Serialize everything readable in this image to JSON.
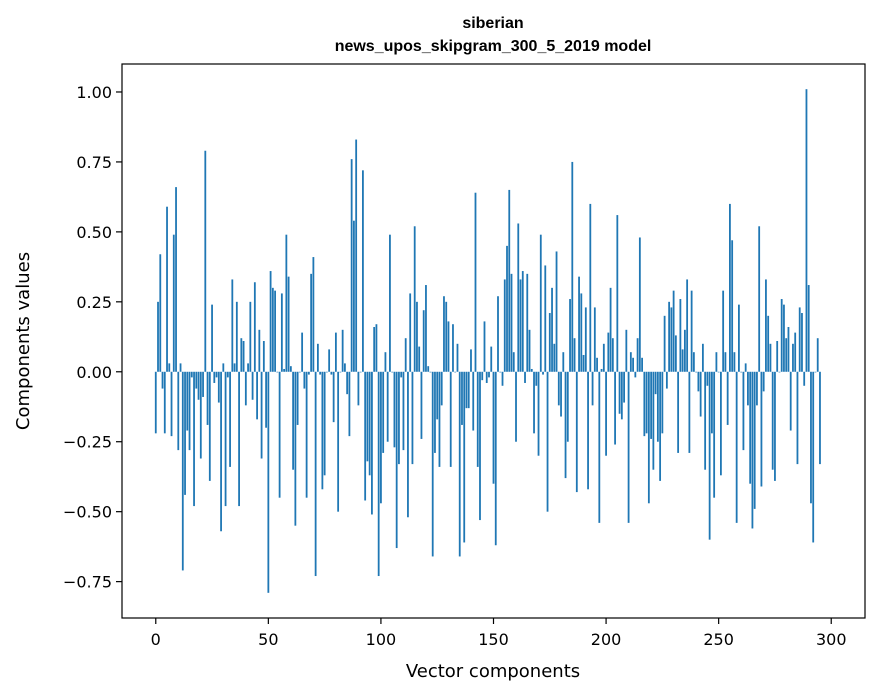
{
  "chart_data": {
    "type": "bar",
    "title_line1": "siberian",
    "title_line2": "news_upos_skipgram_300_5_2019 model",
    "xlabel": "Vector components",
    "ylabel": "Components values",
    "xlim": [
      -15,
      315
    ],
    "ylim": [
      -0.88,
      1.1
    ],
    "xticks": [
      0,
      50,
      100,
      150,
      200,
      250,
      300
    ],
    "yticks": [
      -0.75,
      -0.5,
      -0.25,
      0.0,
      0.25,
      0.5,
      0.75,
      1.0
    ],
    "ytick_labels": [
      "−0.75",
      "−0.50",
      "−0.25",
      "0.00",
      "0.25",
      "0.50",
      "0.75",
      "1.00"
    ],
    "bar_color": "#1f77b4",
    "values": [
      -0.22,
      0.25,
      0.42,
      -0.06,
      -0.22,
      0.59,
      0.03,
      -0.23,
      0.49,
      0.66,
      -0.28,
      0.03,
      -0.71,
      -0.44,
      -0.21,
      -0.28,
      -0.02,
      -0.48,
      -0.06,
      -0.1,
      -0.31,
      -0.09,
      0.79,
      -0.19,
      -0.39,
      0.24,
      -0.04,
      -0.02,
      -0.11,
      -0.57,
      0.03,
      -0.48,
      -0.02,
      -0.34,
      0.33,
      0.03,
      0.25,
      -0.48,
      0.12,
      0.11,
      -0.12,
      0.03,
      0.25,
      -0.1,
      0.32,
      -0.17,
      0.15,
      -0.31,
      0.11,
      -0.2,
      -0.79,
      0.36,
      0.3,
      0.29,
      0.0,
      -0.45,
      0.28,
      0.01,
      0.49,
      0.34,
      0.02,
      -0.35,
      -0.55,
      -0.19,
      0.0,
      0.14,
      -0.06,
      -0.45,
      -0.01,
      0.35,
      0.41,
      -0.73,
      0.1,
      -0.01,
      -0.42,
      -0.37,
      0.0,
      0.08,
      -0.01,
      -0.18,
      0.14,
      -0.5,
      0.0,
      0.15,
      0.03,
      -0.08,
      -0.23,
      0.76,
      0.54,
      0.83,
      -0.12,
      0.0,
      0.72,
      -0.46,
      -0.32,
      -0.37,
      -0.51,
      0.16,
      0.17,
      -0.73,
      -0.47,
      -0.29,
      0.07,
      -0.25,
      0.49,
      0.0,
      -0.27,
      -0.63,
      -0.33,
      -0.02,
      -0.28,
      0.12,
      -0.52,
      0.28,
      -0.33,
      0.52,
      0.25,
      0.09,
      -0.24,
      0.22,
      0.31,
      0.02,
      0.0,
      -0.66,
      -0.29,
      -0.17,
      -0.34,
      -0.12,
      0.27,
      0.25,
      0.18,
      -0.34,
      0.17,
      0.0,
      0.1,
      -0.66,
      -0.19,
      -0.61,
      -0.13,
      -0.13,
      0.08,
      -0.21,
      0.64,
      -0.34,
      -0.53,
      -0.03,
      0.18,
      -0.04,
      -0.02,
      0.09,
      -0.4,
      -0.62,
      0.27,
      0.0,
      -0.05,
      0.33,
      0.45,
      0.65,
      0.35,
      0.07,
      -0.25,
      0.53,
      0.33,
      0.36,
      -0.04,
      0.35,
      0.15,
      0.01,
      -0.22,
      -0.05,
      -0.3,
      0.49,
      -0.01,
      0.38,
      -0.5,
      0.21,
      0.3,
      0.1,
      0.43,
      -0.12,
      -0.16,
      0.07,
      -0.38,
      -0.25,
      0.26,
      0.75,
      0.12,
      -0.43,
      0.34,
      0.28,
      0.06,
      0.23,
      -0.42,
      0.6,
      -0.12,
      0.23,
      0.05,
      -0.54,
      0.01,
      0.1,
      -0.3,
      0.14,
      0.3,
      0.12,
      -0.26,
      0.56,
      -0.15,
      -0.17,
      -0.11,
      0.15,
      -0.54,
      0.07,
      0.05,
      -0.02,
      0.12,
      0.48,
      0.05,
      -0.23,
      -0.22,
      -0.47,
      -0.24,
      -0.35,
      -0.08,
      -0.25,
      -0.39,
      -0.22,
      0.2,
      -0.06,
      0.25,
      0.23,
      0.29,
      0.13,
      -0.29,
      0.26,
      0.08,
      0.15,
      0.33,
      -0.29,
      0.29,
      0.07,
      0.0,
      -0.07,
      -0.16,
      0.1,
      -0.35,
      -0.05,
      -0.6,
      -0.22,
      -0.45,
      0.07,
      0.0,
      -0.37,
      0.29,
      0.07,
      -0.19,
      0.6,
      0.47,
      0.07,
      -0.54,
      0.24,
      0.0,
      -0.28,
      0.03,
      -0.12,
      -0.4,
      -0.56,
      -0.49,
      -0.12,
      0.52,
      -0.41,
      -0.07,
      0.33,
      0.2,
      0.1,
      -0.35,
      -0.39,
      0.11,
      0.0,
      0.26,
      0.24,
      0.12,
      0.16,
      -0.21,
      0.1,
      0.14,
      -0.33,
      0.23,
      0.21,
      -0.05,
      1.01,
      0.31,
      -0.47,
      -0.61,
      0.0,
      0.12,
      -0.33
    ]
  }
}
